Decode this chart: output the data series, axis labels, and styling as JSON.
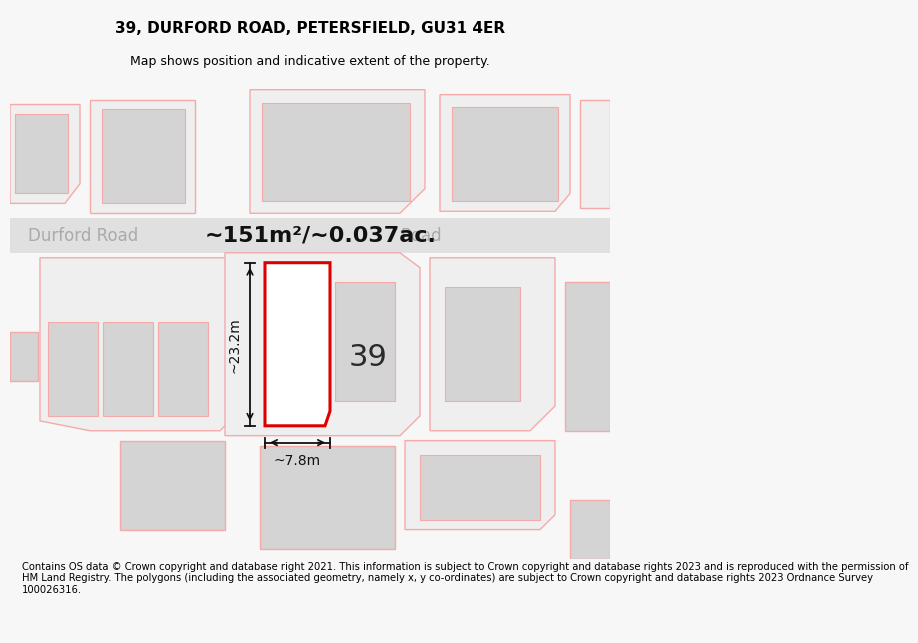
{
  "title": "39, DURFORD ROAD, PETERSFIELD, GU31 4ER",
  "subtitle": "Map shows position and indicative extent of the property.",
  "footer": "Contains OS data © Crown copyright and database right 2021. This information is subject to Crown copyright and database rights 2023 and is reproduced with the permission of\nHM Land Registry. The polygons (including the associated geometry, namely x, y co-ordinates) are subject to Crown copyright and database rights 2023 Ordnance Survey\n100026316.",
  "area_label": "~151m²/~0.037ac.",
  "dim_height": "~23.2m",
  "dim_width": "~7.8m",
  "number_label": "39",
  "road_label_left": "Durford Road",
  "road_label_right": "Road",
  "bg_color": "#f7f7f7",
  "map_bg": "#ffffff",
  "road_color": "#e0e0e0",
  "plot_fill": "#efefef",
  "building_fill": "#d4d4d4",
  "building_edge_light": "#f5aaaa",
  "highlight_edge": "#dd0000",
  "highlight_fill": "#ffffff",
  "dim_line_color": "#111111",
  "title_fontsize": 11,
  "subtitle_fontsize": 9,
  "footer_fontsize": 7.2,
  "area_fontsize": 16,
  "number_fontsize": 22,
  "road_fontsize": 12
}
